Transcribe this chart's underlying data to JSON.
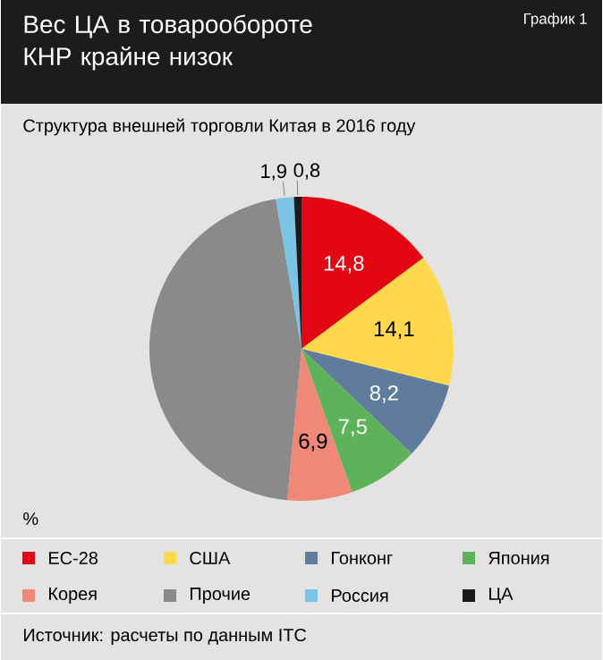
{
  "chart_data": {
    "type": "pie",
    "title": "Вес ЦА в товарообороте КНР крайне низок",
    "subtitle": "Структура внешней торговли Китая в 2016 году",
    "categories": [
      "ЕС-28",
      "США",
      "Гонконг",
      "Япония",
      "Корея",
      "Прочие",
      "Россия",
      "ЦА"
    ],
    "values": [
      14.8,
      14.1,
      8.2,
      7.5,
      6.9,
      45.8,
      1.9,
      0.8
    ],
    "value_labels": [
      "14,8",
      "14,1",
      "8,2",
      "7,5",
      "6,9",
      null,
      "1,9",
      "0,8"
    ],
    "colors": [
      "#e30613",
      "#ffd84d",
      "#5f7c9c",
      "#5eb35a",
      "#f08878",
      "#8a8a8a",
      "#7cc4e6",
      "#1a1a1a"
    ],
    "legend": "bottom",
    "annotations": [
      "График 1",
      "%",
      "Источник: расчеты по данным ITC"
    ]
  }
}
